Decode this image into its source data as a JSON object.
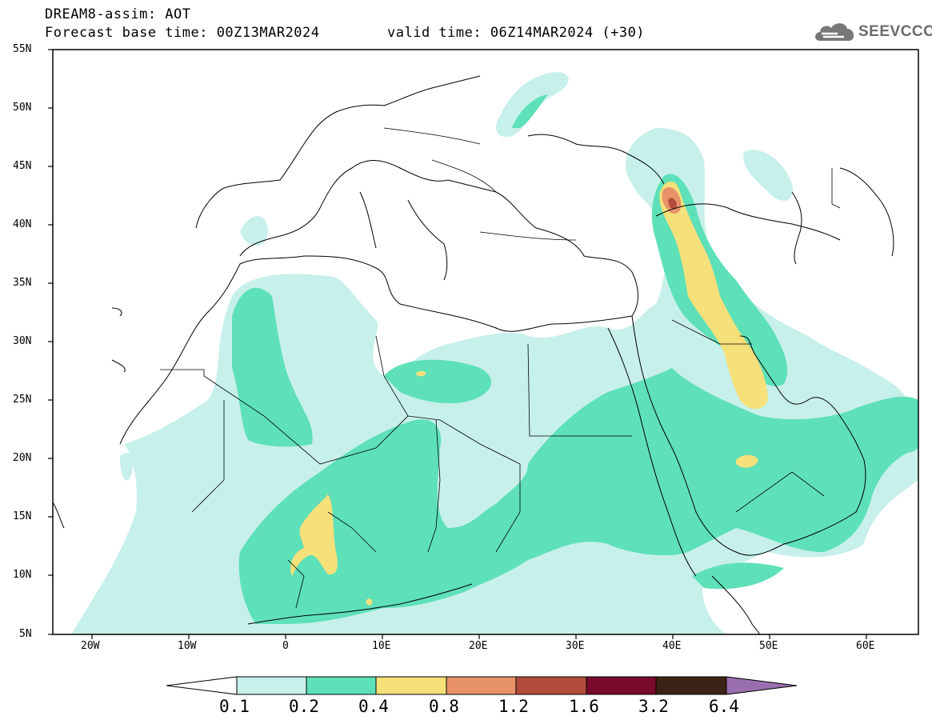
{
  "title": {
    "line1": "DREAM8-assim: AOT",
    "line2": "Forecast base time: 00Z13MAR2024",
    "valid": "valid time: 06Z14MAR2024 (+30)"
  },
  "logo": {
    "text": "SEEVCCC",
    "icon": "cloud-icon"
  },
  "map": {
    "lon_range": [
      -25,
      65
    ],
    "lat_range": [
      5,
      55
    ],
    "lat_labels": [
      "55N",
      "50N",
      "45N",
      "40N",
      "35N",
      "30N",
      "25N",
      "20N",
      "15N",
      "10N",
      "5N"
    ],
    "lon_labels": [
      "20W",
      "10W",
      "0",
      "10E",
      "20E",
      "30E",
      "40E",
      "50E",
      "60E"
    ]
  },
  "colorbar": {
    "labels": [
      "0.1",
      "0.2",
      "0.4",
      "0.8",
      "1.2",
      "1.6",
      "3.2",
      "6.4"
    ],
    "colors": [
      "#ffffff",
      "#c7f0ea",
      "#5ee0b8",
      "#f5e07a",
      "#e8926a",
      "#b44c3c",
      "#7a0a2a",
      "#3b2416",
      "#9a6fb0"
    ]
  }
}
